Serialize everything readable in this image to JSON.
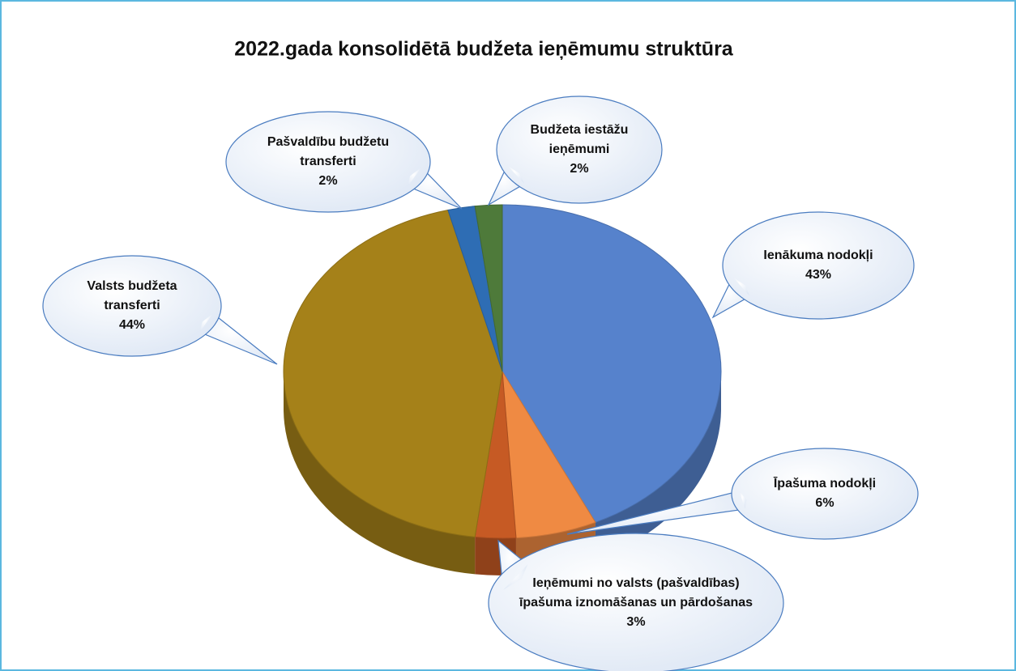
{
  "chart_data": {
    "type": "pie3d",
    "title": "2022.gada konsolidētā budžeta ieņēmumu struktūra",
    "categories": [
      "Ienākuma nodokļi",
      "Īpašuma nodokļi",
      "Ieņēmumi no valsts (pašvaldības) īpašuma iznomāšanas un pārdošanas",
      "Valsts budžeta transferti",
      "Pašvaldību budžetu transferti",
      "Budžeta iestāžu ieņēmumi"
    ],
    "values": [
      43,
      6,
      3,
      44,
      2,
      2
    ],
    "value_labels": [
      "43%",
      "6%",
      "3%",
      "44%",
      "2%",
      "2%"
    ],
    "colors": [
      "#5682cc",
      "#ef8a43",
      "#c65a24",
      "#a58119",
      "#2e6db4",
      "#4e7a3a"
    ]
  }
}
